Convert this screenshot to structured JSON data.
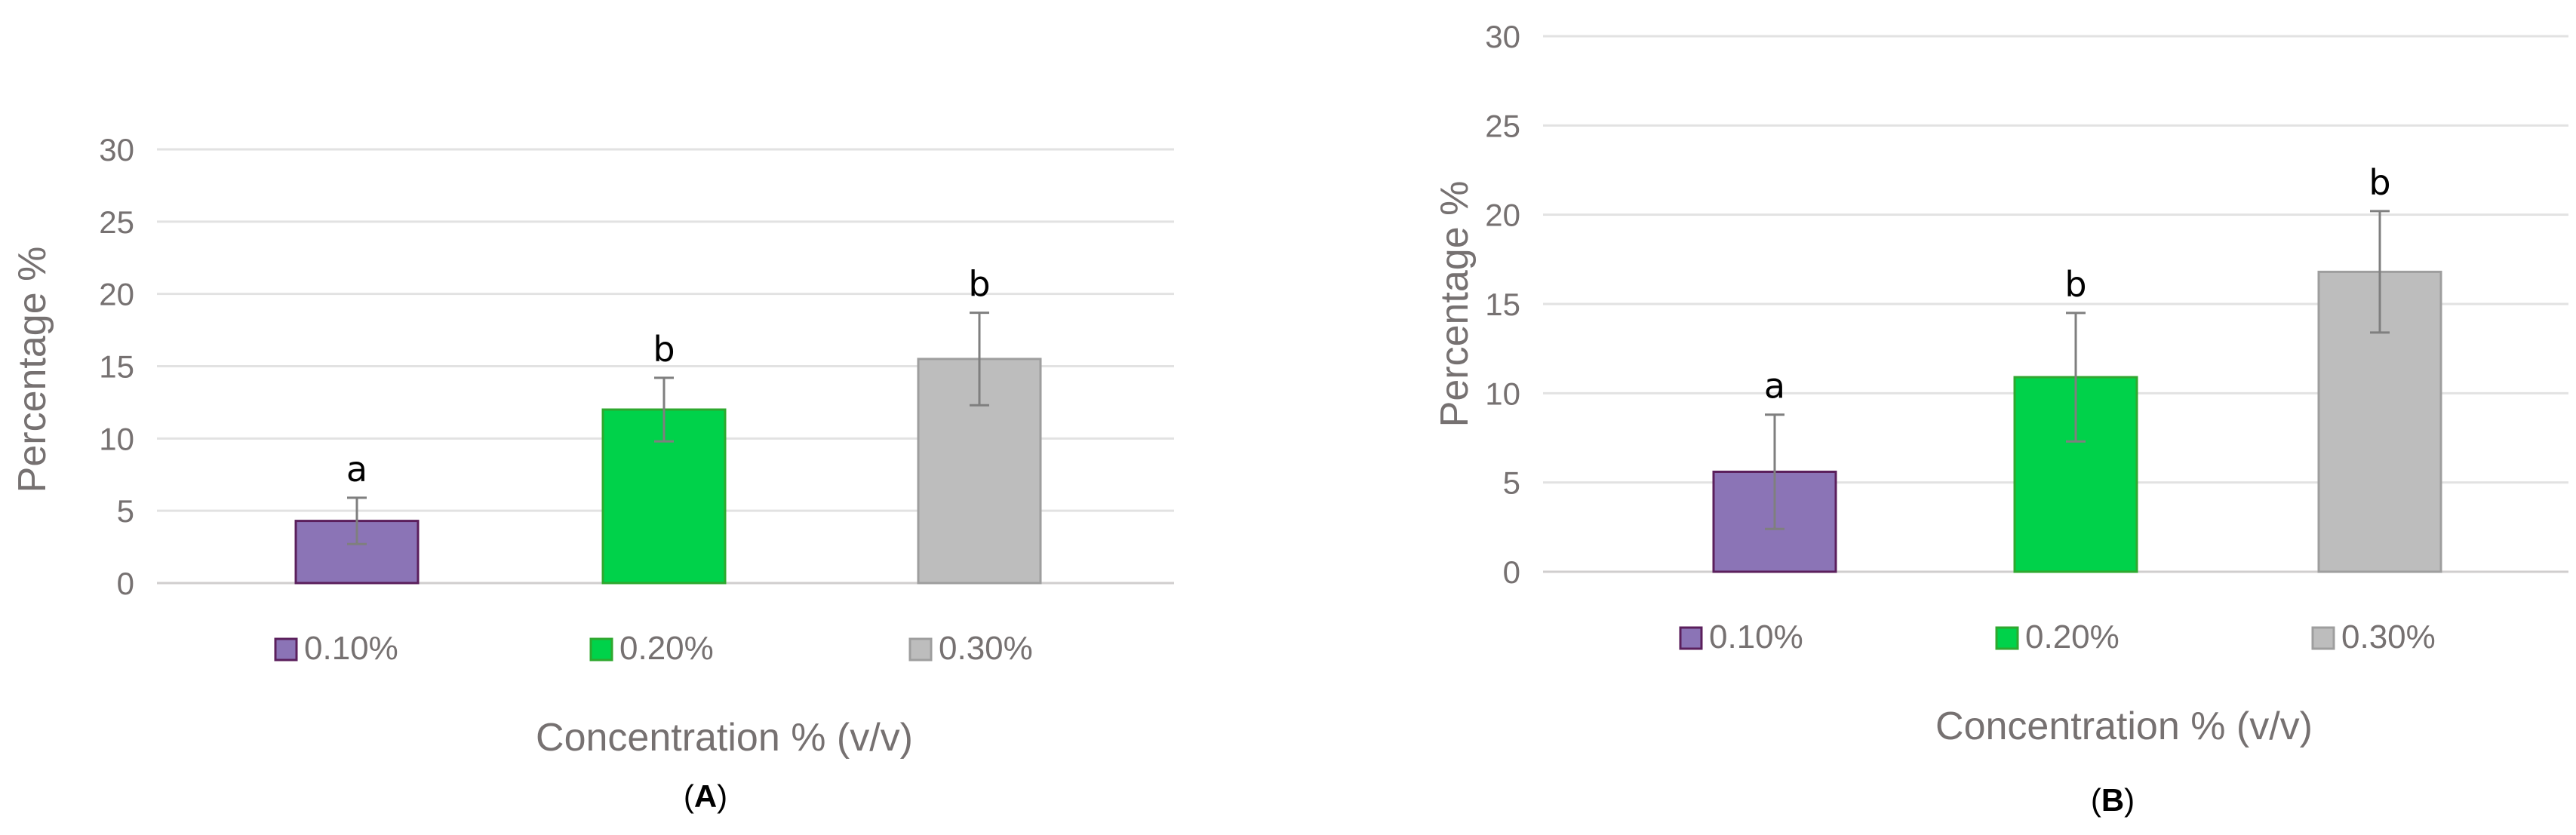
{
  "chart_data": [
    {
      "type": "bar",
      "panel_label_open": "(",
      "panel_label": "A",
      "panel_label_close": ")",
      "categories": [
        "0.10%",
        "0.20%",
        "0.30%"
      ],
      "values": [
        4.3,
        12.0,
        15.5
      ],
      "error": [
        1.6,
        2.2,
        3.2
      ],
      "significance": [
        "a",
        "b",
        "b"
      ],
      "colors": [
        "#8B74B6",
        "#00D24A",
        "#BDBDBD"
      ],
      "edge_colors": [
        "#5B1F5C",
        "#2FA82F",
        "#9E9E9E"
      ],
      "ylim": [
        0,
        30
      ],
      "yticks": [
        0,
        5,
        10,
        15,
        20,
        25,
        30
      ],
      "xlabel": "Concentration % (v/v)",
      "ylabel": "Percentage %",
      "legend": [
        "0.10%",
        "0.20%",
        "0.30%"
      ],
      "legend_position": "bottom",
      "grid": true
    },
    {
      "type": "bar",
      "panel_label_open": "(",
      "panel_label": "B",
      "panel_label_close": ")",
      "categories": [
        "0.10%",
        "0.20%",
        "0.30%"
      ],
      "values": [
        5.6,
        10.9,
        16.8
      ],
      "error": [
        3.2,
        3.6,
        3.4
      ],
      "significance": [
        "a",
        "b",
        "b"
      ],
      "colors": [
        "#8B74B6",
        "#00D24A",
        "#BDBDBD"
      ],
      "edge_colors": [
        "#5B1F5C",
        "#2FA82F",
        "#9E9E9E"
      ],
      "ylim": [
        0,
        30
      ],
      "yticks": [
        0,
        5,
        10,
        15,
        20,
        25,
        30
      ],
      "xlabel": "Concentration % (v/v)",
      "ylabel": "Percentage %",
      "legend": [
        "0.10%",
        "0.20%",
        "0.30%"
      ],
      "legend_position": "bottom",
      "grid": true
    }
  ]
}
